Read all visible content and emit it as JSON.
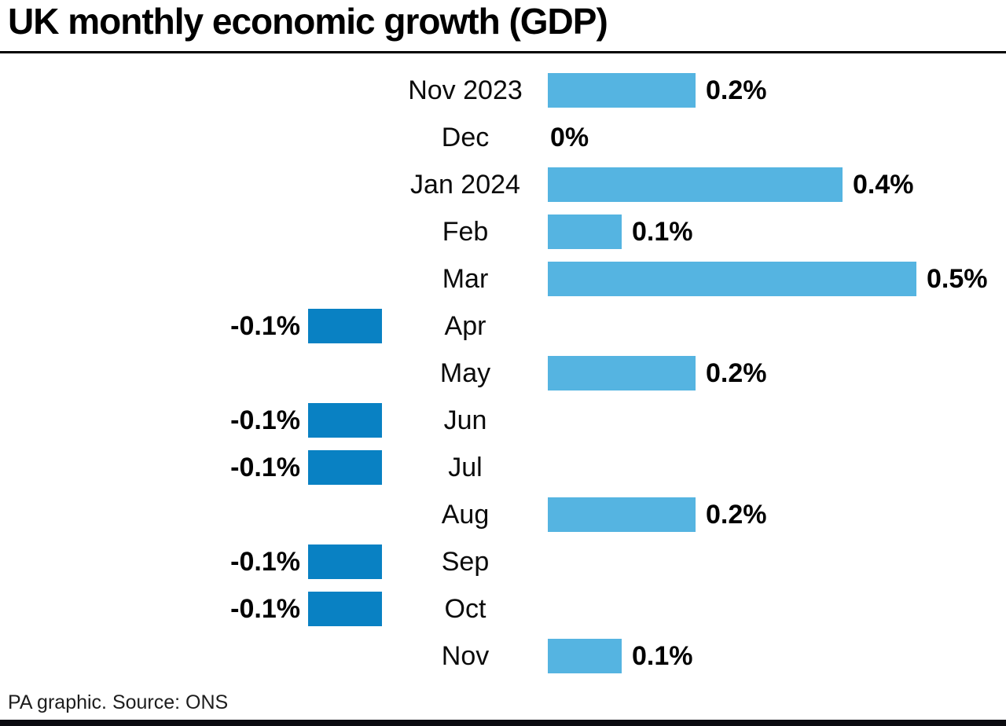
{
  "chart_data": {
    "type": "bar",
    "orientation": "horizontal",
    "title": "UK monthly economic growth (GDP)",
    "categories": [
      "Nov 2023",
      "Dec",
      "Jan 2024",
      "Feb",
      "Mar",
      "Apr",
      "May",
      "Jun",
      "Jul",
      "Aug",
      "Sep",
      "Oct",
      "Nov"
    ],
    "values": [
      0.2,
      0,
      0.4,
      0.1,
      0.5,
      -0.1,
      0.2,
      -0.1,
      -0.1,
      0.2,
      -0.1,
      -0.1,
      0.1
    ],
    "value_labels": [
      "0.2%",
      "0%",
      "0.4%",
      "0.1%",
      "0.5%",
      "-0.1%",
      "0.2%",
      "-0.1%",
      "-0.1%",
      "0.2%",
      "-0.1%",
      "-0.1%",
      "0.1%"
    ],
    "unit": "%",
    "xlim": [
      -0.1,
      0.5
    ],
    "positive_color": "#55b4e1",
    "negative_color": "#0981c3",
    "grid": false,
    "legend": false,
    "source": "PA graphic. Source: ONS"
  }
}
